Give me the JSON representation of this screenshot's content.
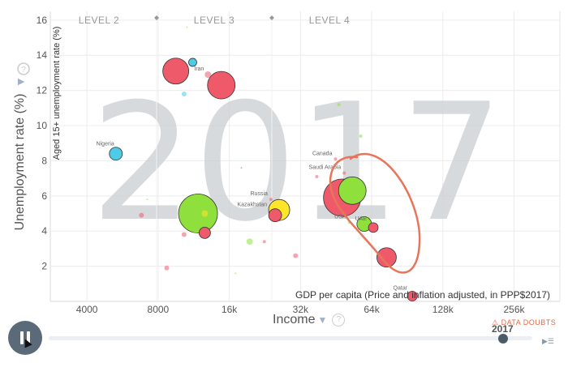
{
  "chart_data": {
    "type": "scatter",
    "year": "2017",
    "levels": [
      "LEVEL 2",
      "LEVEL 3",
      "LEVEL 4"
    ],
    "y_axis": {
      "label": "Unemployment rate (%)",
      "sub_label": "Aged 15+ unemployment rate (%)",
      "ticks": [
        2,
        4,
        6,
        8,
        10,
        12,
        14,
        16
      ],
      "range": [
        0,
        16.5
      ]
    },
    "x_axis": {
      "label": "Income",
      "sub_label": "GDP per capita (Price and inflation adjusted, in PPP$2017)",
      "scale": "log",
      "ticks": [
        4000,
        8000,
        16000,
        32000,
        64000,
        128000,
        256000
      ],
      "tick_labels": [
        "4000",
        "8000",
        "16k",
        "32k",
        "64k",
        "128k",
        "256k"
      ],
      "range": [
        2800,
        400000
      ]
    },
    "colors": {
      "red": "#ef5a6b",
      "green": "#8fe03c",
      "yellow": "#ffe629",
      "blue": "#4ecbe6",
      "annotation": "#e8755a"
    },
    "points": [
      {
        "x": 9500,
        "y": 13.1,
        "r": 16,
        "color": "red"
      },
      {
        "x": 11200,
        "y": 13.6,
        "r": 5,
        "color": "blue"
      },
      {
        "x": 13000,
        "y": 12.9,
        "r": 4,
        "color": "red",
        "label": "Iran"
      },
      {
        "x": 14800,
        "y": 12.3,
        "r": 17,
        "color": "red"
      },
      {
        "x": 10300,
        "y": 11.8,
        "r": 3,
        "color": "blue"
      },
      {
        "x": 5300,
        "y": 8.4,
        "r": 8,
        "color": "blue",
        "label": "Nigeria"
      },
      {
        "x": 11800,
        "y": 5.0,
        "r": 24,
        "color": "green"
      },
      {
        "x": 12600,
        "y": 3.9,
        "r": 7,
        "color": "red"
      },
      {
        "x": 12600,
        "y": 5.0,
        "r": 4,
        "color": "yellow"
      },
      {
        "x": 11500,
        "y": 4.0,
        "r": 3,
        "color": "green"
      },
      {
        "x": 26000,
        "y": 5.2,
        "r": 13,
        "color": "yellow"
      },
      {
        "x": 25000,
        "y": 4.9,
        "r": 8,
        "color": "red",
        "label": "Kazakhstan"
      },
      {
        "x": 24000,
        "y": 5.8,
        "r": 2,
        "color": "red",
        "label": "Russia"
      },
      {
        "x": 19500,
        "y": 3.4,
        "r": 4,
        "color": "green"
      },
      {
        "x": 22500,
        "y": 3.4,
        "r": 2,
        "color": "red"
      },
      {
        "x": 10300,
        "y": 3.8,
        "r": 3,
        "color": "red"
      },
      {
        "x": 8700,
        "y": 1.9,
        "r": 3,
        "color": "red"
      },
      {
        "x": 6800,
        "y": 4.9,
        "r": 3,
        "color": "red"
      },
      {
        "x": 30500,
        "y": 2.6,
        "r": 3,
        "color": "red"
      },
      {
        "x": 48000,
        "y": 5.9,
        "r": 23,
        "color": "red"
      },
      {
        "x": 53000,
        "y": 6.3,
        "r": 17,
        "color": "green"
      },
      {
        "x": 51500,
        "y": 4.5,
        "r": 2,
        "color": "green",
        "label": "USA"
      },
      {
        "x": 59500,
        "y": 4.4,
        "r": 9,
        "color": "green"
      },
      {
        "x": 65000,
        "y": 4.2,
        "r": 6,
        "color": "red",
        "label": "UAE"
      },
      {
        "x": 74000,
        "y": 2.5,
        "r": 12,
        "color": "red"
      },
      {
        "x": 95000,
        "y": 0.3,
        "r": 6,
        "color": "red",
        "label": "Qatar"
      },
      {
        "x": 49000,
        "y": 7.3,
        "r": 2,
        "color": "red",
        "label": "Saudi Arabia"
      },
      {
        "x": 45000,
        "y": 8.1,
        "r": 2,
        "color": "red",
        "label": "Canada"
      },
      {
        "x": 46500,
        "y": 11.2,
        "r": 2,
        "color": "green"
      },
      {
        "x": 57500,
        "y": 9.4,
        "r": 2,
        "color": "green"
      },
      {
        "x": 37500,
        "y": 7.1,
        "r": 2,
        "color": "red"
      },
      {
        "x": 17000,
        "y": 1.6,
        "r": 1,
        "color": "green"
      },
      {
        "x": 18000,
        "y": 7.6,
        "r": 1,
        "color": "red"
      },
      {
        "x": 7200,
        "y": 5.8,
        "r": 1,
        "color": "green"
      },
      {
        "x": 10600,
        "y": 15.6,
        "r": 1,
        "color": "green"
      }
    ]
  },
  "controls": {
    "play_state": "pause",
    "current_year": "2017",
    "data_doubts": "DATA DOUBTS",
    "help": "?"
  }
}
